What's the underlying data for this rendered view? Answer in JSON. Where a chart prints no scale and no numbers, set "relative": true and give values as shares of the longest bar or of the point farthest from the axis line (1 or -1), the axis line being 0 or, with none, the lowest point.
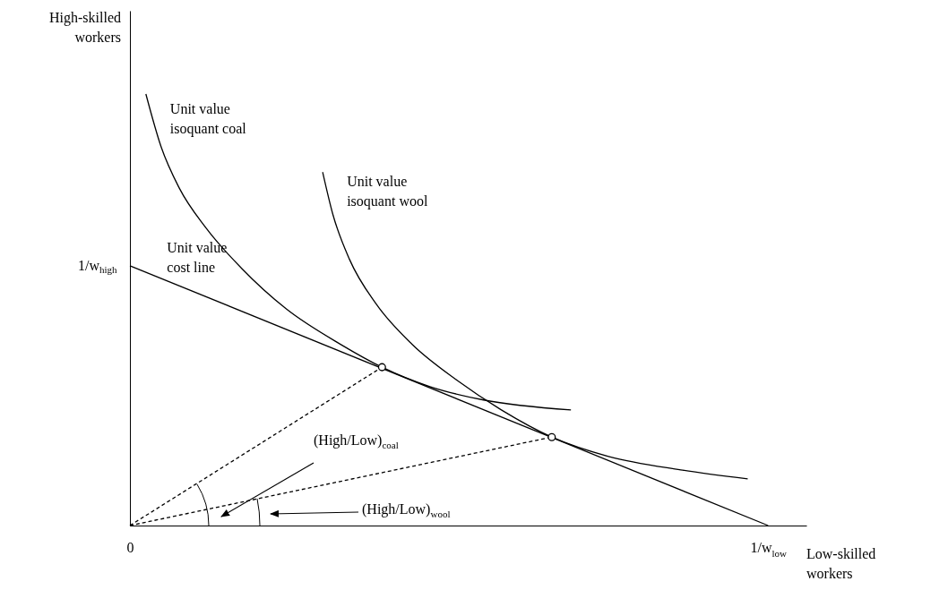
{
  "chart_data": {
    "type": "line",
    "relative": true,
    "xlabel": "Low-skilled workers",
    "ylabel": "High-skilled workers",
    "xlim": [
      0,
      1.06
    ],
    "xticks": [
      {
        "value": 0,
        "label": "0"
      },
      {
        "value": 1,
        "label": "1/w$_{low}$"
      }
    ],
    "series": [
      {
        "name": "Unit value isoquant coal",
        "color": "#000000",
        "x": [
          0.025,
          0.049,
          0.077,
          0.119,
          0.175,
          0.245,
          0.33,
          0.395,
          0.47,
          0.554,
          0.691
        ],
        "values": [
          1,
          0.877,
          0.783,
          0.69,
          0.596,
          0.502,
          0.42,
          0.367,
          0.322,
          0.291,
          0.268
        ]
      },
      {
        "name": "Unit value isoquant wool",
        "color": "#000000",
        "x": [
          0.302,
          0.318,
          0.344,
          0.386,
          0.442,
          0.512,
          0.582,
          0.661,
          0.75,
          0.863,
          0.968
        ],
        "values": [
          0.819,
          0.721,
          0.617,
          0.513,
          0.42,
          0.337,
          0.268,
          0.205,
          0.16,
          0.129,
          0.108
        ]
      },
      {
        "name": "Unit value cost line",
        "color": "#000000",
        "x": [
          0,
          1
        ],
        "values": [
          0.602,
          0
        ]
      },
      {
        "color": "#000000",
        "line_style": "dashed",
        "x": [
          0,
          0.395
        ],
        "values": [
          0,
          0.367
        ]
      },
      {
        "color": "#000000",
        "line_style": "dashed",
        "x": [
          0,
          0.661
        ],
        "values": [
          0,
          0.205
        ]
      },
      {
        "type": "scatter",
        "marker": "circle",
        "color": "#000000",
        "x": [
          0.395,
          0.661
        ],
        "values": [
          0.367,
          0.205
        ]
      }
    ],
    "annotations": [
      {
        "text": "1/w$_{high}$",
        "x": 0,
        "y": 0.602
      },
      "(High/Low)$_{coal}$",
      "(High/Low)$_{wool}$"
    ]
  }
}
